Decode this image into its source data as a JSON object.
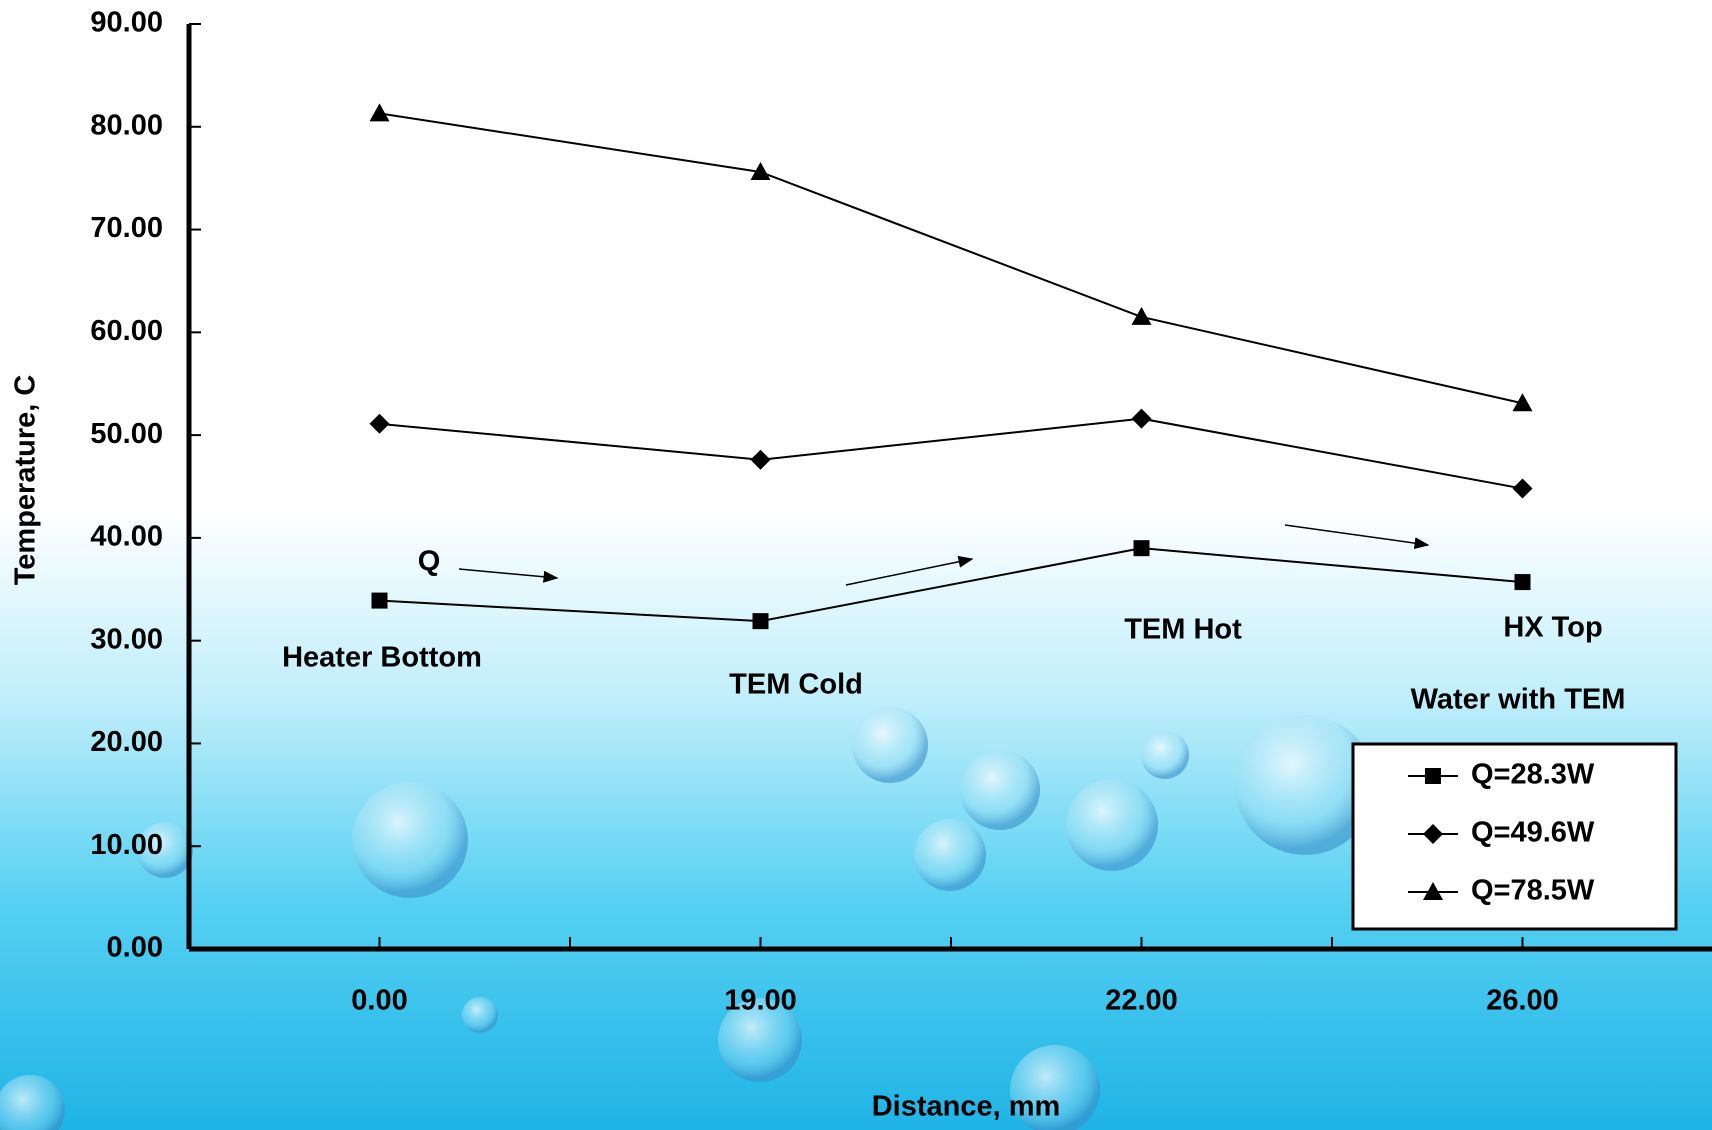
{
  "chart_data": {
    "type": "line",
    "x_label": "Distance, mm",
    "y_label": "Temperature, C",
    "categories": [
      "0.00",
      "19.00",
      "22.00",
      "26.00"
    ],
    "series": [
      {
        "name": "Q=28.3W",
        "color": "#000000",
        "marker": "square",
        "values": [
          33.9,
          31.9,
          39.0,
          35.7
        ]
      },
      {
        "name": "Q=49.6W",
        "color": "#000000",
        "marker": "diamond",
        "values": [
          51.1,
          47.6,
          51.6,
          44.8
        ]
      },
      {
        "name": "Q=78.5W",
        "color": "#000000",
        "marker": "triangle",
        "values": [
          81.3,
          75.6,
          61.5,
          53.1
        ]
      }
    ],
    "ylim": [
      0,
      90
    ],
    "yticks": [
      {
        "value": 0,
        "label": "0.00"
      },
      {
        "value": 10,
        "label": "10.00"
      },
      {
        "value": 20,
        "label": "20.00"
      },
      {
        "value": 30,
        "label": "30.00"
      },
      {
        "value": 40,
        "label": "40.00"
      },
      {
        "value": 50,
        "label": "50.00"
      },
      {
        "value": 60,
        "label": "60.00"
      },
      {
        "value": 70,
        "label": "70.00"
      },
      {
        "value": 80,
        "label": "80.00"
      },
      {
        "value": 90,
        "label": "90.00"
      }
    ],
    "annotations": [
      "Q",
      "Heater Bottom",
      "TEM Cold",
      "TEM Hot",
      "HX Top",
      "Water with TEM"
    ],
    "legend": "lower right",
    "grid": false
  }
}
